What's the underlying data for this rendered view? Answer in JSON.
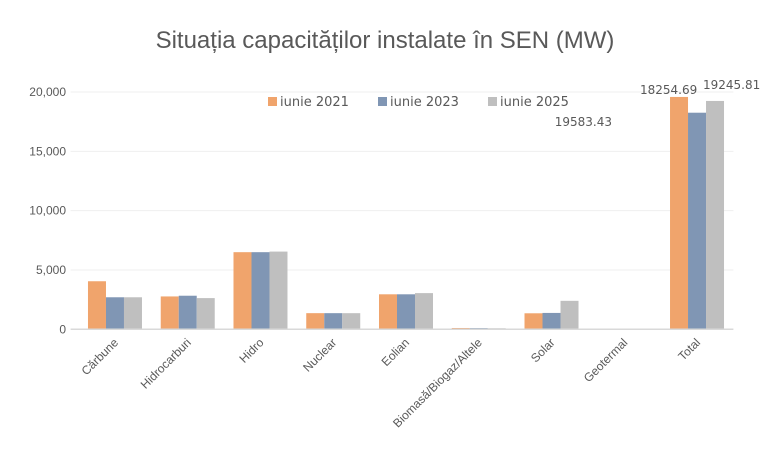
{
  "chart_data": {
    "type": "bar",
    "title": "Situația capacităților instalate în SEN (MW)",
    "xlabel": "",
    "ylabel": "",
    "ylim": [
      0,
      20000
    ],
    "yticks": [
      "0",
      "5,000",
      "10,000",
      "15,000",
      "20,000"
    ],
    "grid": true,
    "legend": "top-center",
    "categories": [
      "Cărbune",
      "Hidrocarburi",
      "Hidro",
      "Nuclear",
      "Eolian",
      "Biomasă/Biogaz/Altele",
      "Solar",
      "Geotermal",
      "Total"
    ],
    "series": [
      {
        "name": "iunie 2021",
        "color": "#F0A46C",
        "values": [
          4050,
          2770,
          6500,
          1360,
          2950,
          110,
          1350,
          0,
          19583.43
        ]
      },
      {
        "name": "iunie 2023",
        "color": "#8096B4",
        "values": [
          2700,
          2830,
          6500,
          1360,
          2950,
          100,
          1380,
          0,
          18254.69
        ]
      },
      {
        "name": "iunie 2025",
        "color": "#BFBFBF",
        "values": [
          2700,
          2630,
          6550,
          1360,
          3050,
          90,
          2400,
          0,
          19245.81
        ]
      }
    ],
    "data_labels": [
      "19583.43",
      "18254.69",
      "19245.81"
    ]
  }
}
